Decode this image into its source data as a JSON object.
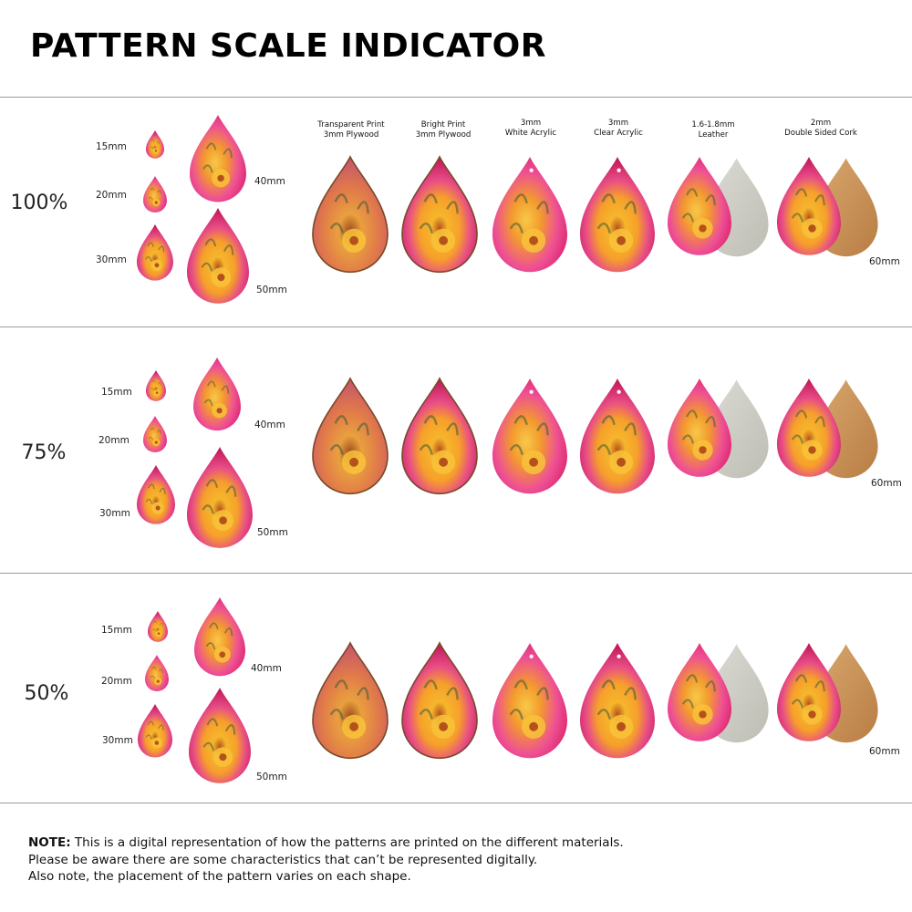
{
  "title": "PATTERN SCALE INDICATOR",
  "materials": [
    {
      "line1": "Transparent Print",
      "line2": "3mm Plywood"
    },
    {
      "line1": "Bright Print",
      "line2": "3mm Plywood"
    },
    {
      "line1": "3mm",
      "line2": "White Acrylic"
    },
    {
      "line1": "3mm",
      "line2": "Clear Acrylic"
    },
    {
      "line1": "1.6-1.8mm",
      "line2": "Leather"
    },
    {
      "line1": "2mm",
      "line2": "Double Sided Cork"
    }
  ],
  "sections": [
    {
      "scale": "100%",
      "sizes": [
        "15mm",
        "20mm",
        "30mm",
        "40mm",
        "50mm"
      ],
      "material_size": "60mm"
    },
    {
      "scale": "75%",
      "sizes": [
        "15mm",
        "20mm",
        "30mm",
        "40mm",
        "50mm"
      ],
      "material_size": "60mm"
    },
    {
      "scale": "50%",
      "sizes": [
        "15mm",
        "20mm",
        "30mm",
        "40mm",
        "50mm"
      ],
      "material_size": "60mm"
    }
  ],
  "note": {
    "label": "NOTE:",
    "line1": " This is a digital representation of how the patterns are printed on the different materials.",
    "line2": "Please be aware there are some characteristics that can’t be represented digitally.",
    "line3": "Also note, the placement of the pattern varies on each shape."
  },
  "colors": {
    "pink": "#e8337a",
    "magenta": "#c2185b",
    "orange": "#f5a623",
    "yellow": "#f9c440",
    "green": "#3d5a3a",
    "leather": "#cfcfc8",
    "cork": "#c8925a"
  }
}
